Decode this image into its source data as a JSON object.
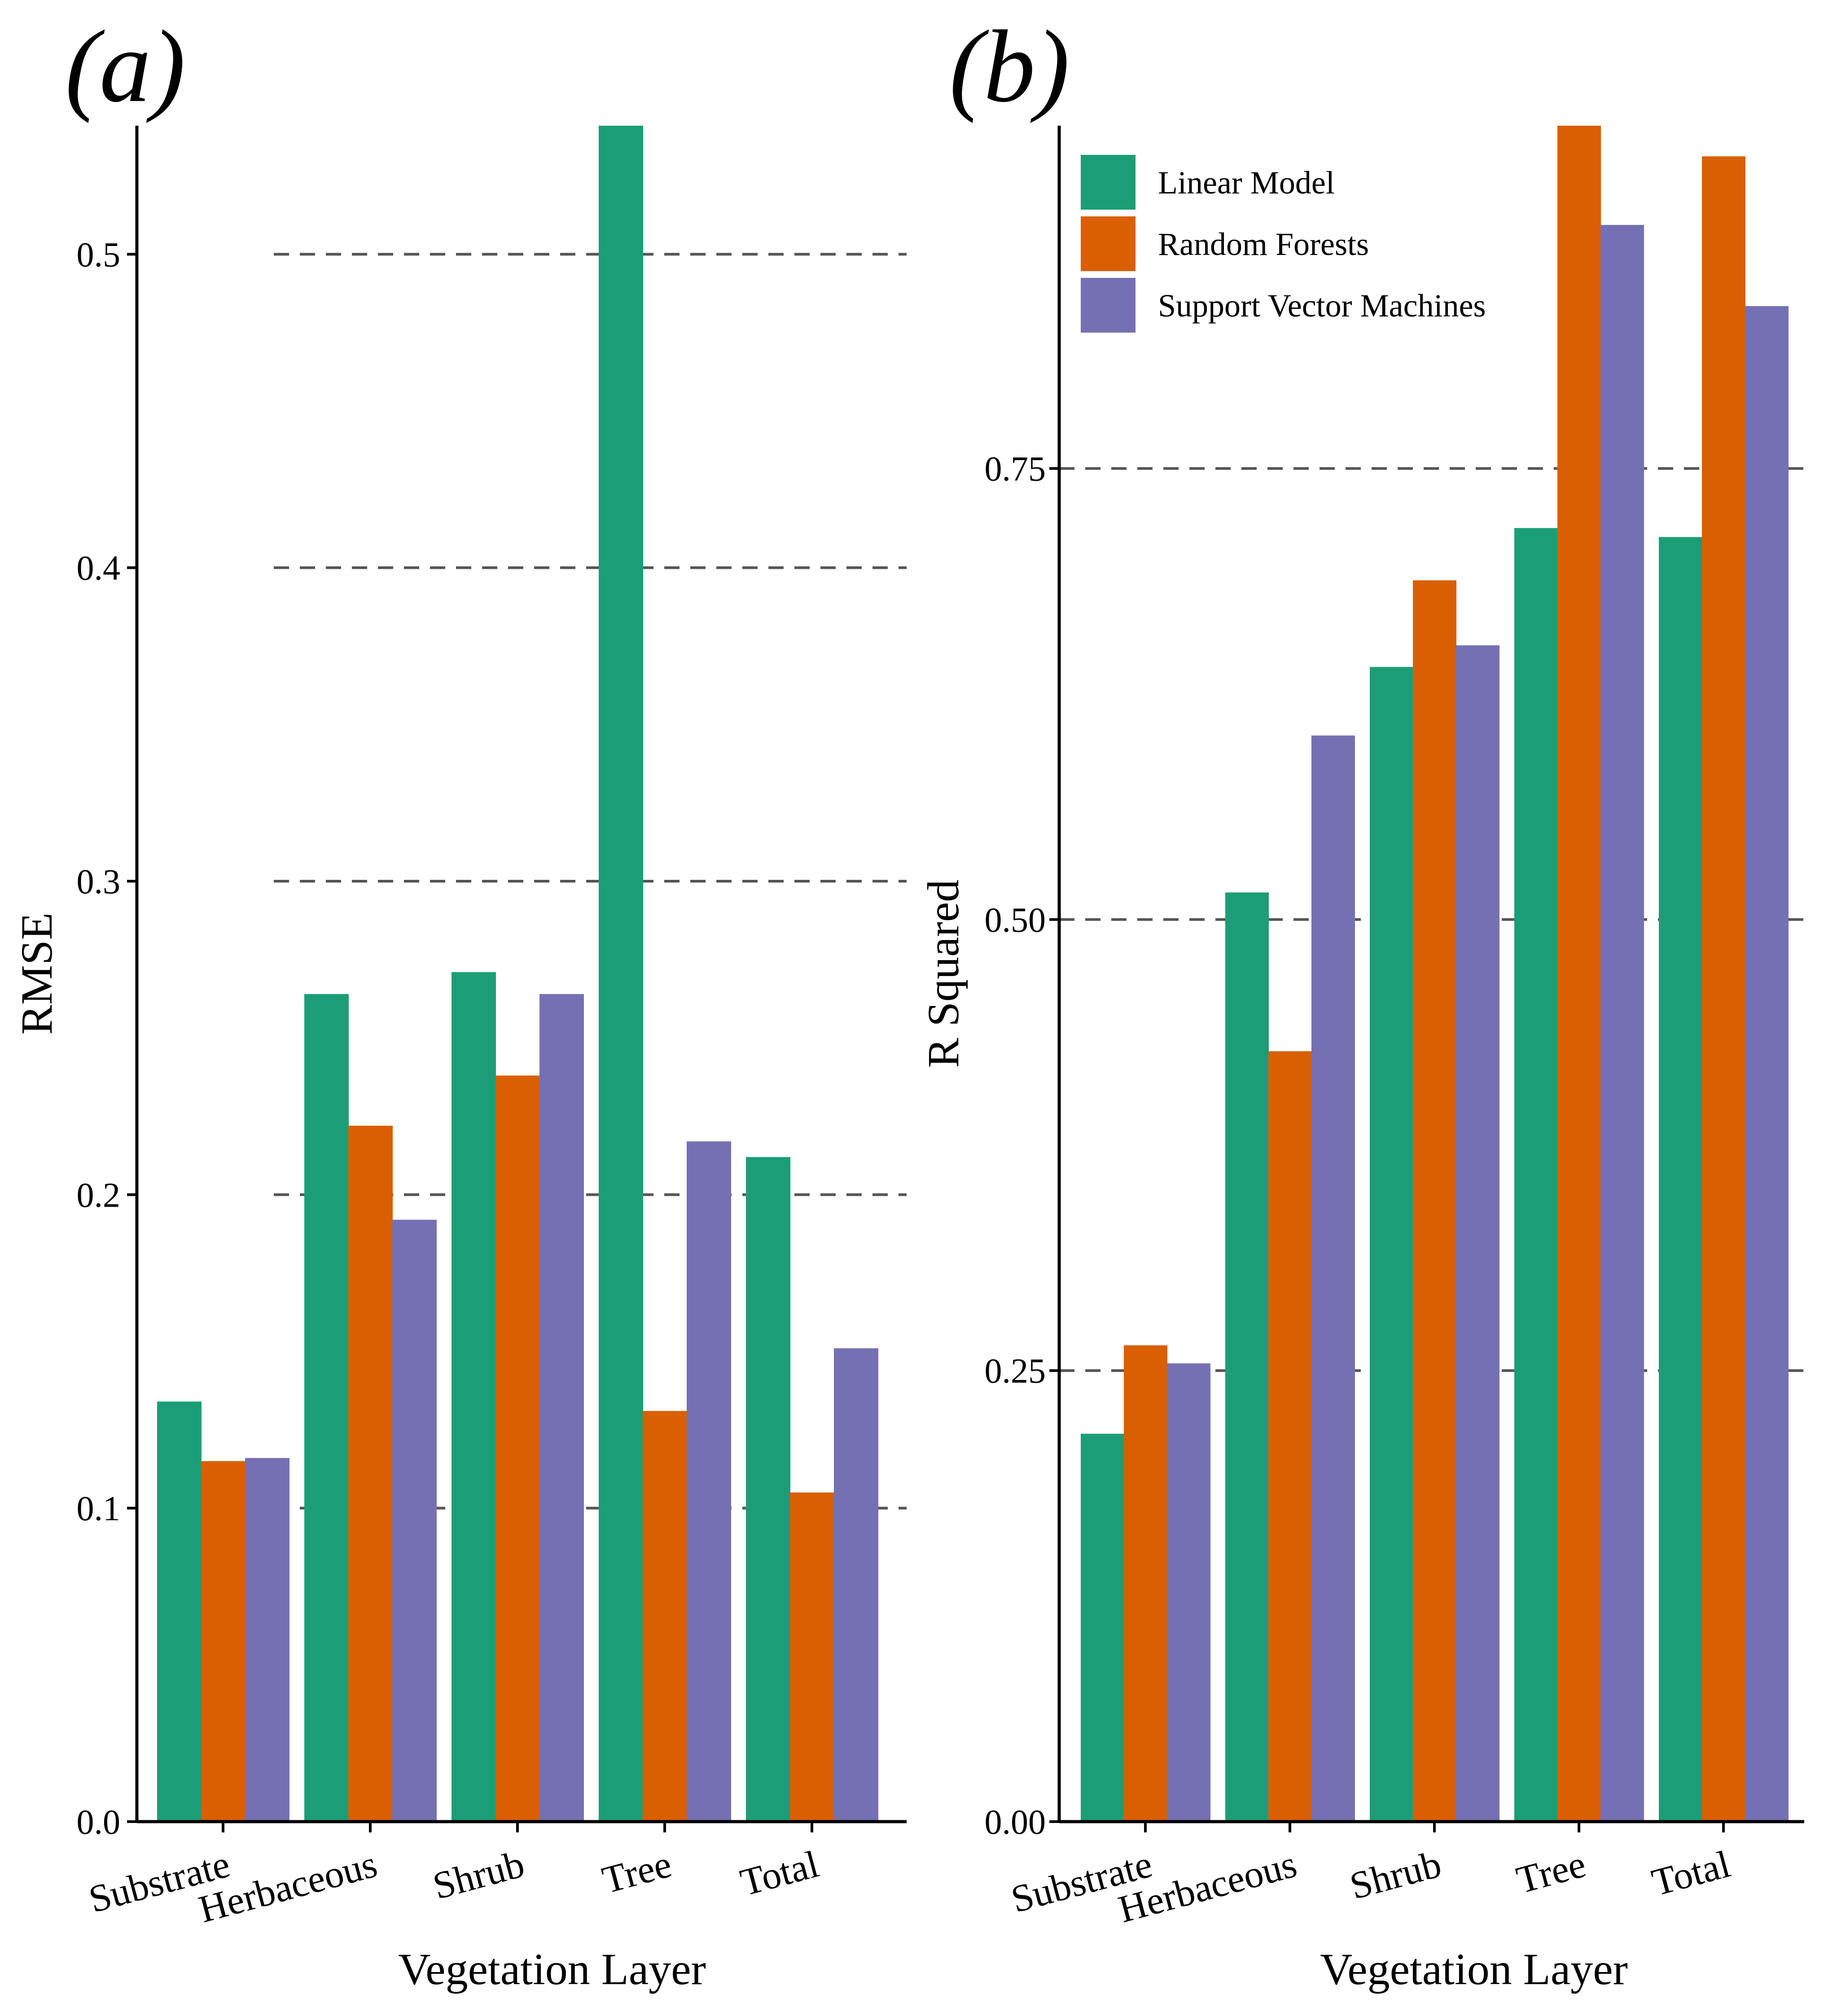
{
  "chart_data": [
    {
      "type": "bar",
      "panel_label": "(a)",
      "title": "",
      "xlabel": "Vegetation Layer",
      "ylabel": "RMSE",
      "ylim": [
        0,
        0.541
      ],
      "yticks": [
        0.0,
        0.1,
        0.2,
        0.3,
        0.4,
        0.5
      ],
      "ytick_labels": [
        "0.0",
        "0.1",
        "0.2",
        "0.3",
        "0.4",
        "0.5"
      ],
      "grid": "horizontal dashed",
      "categories": [
        "Substrate",
        "Herbaceous",
        "Shrub",
        "Tree",
        "Total"
      ],
      "series": [
        {
          "name": "Linear Model",
          "color": "#1b9e77",
          "values": [
            0.134,
            0.264,
            0.271,
            0.541,
            0.212
          ]
        },
        {
          "name": "Random Forests",
          "color": "#d95f02",
          "values": [
            0.115,
            0.222,
            0.238,
            0.131,
            0.105
          ]
        },
        {
          "name": "Support Vector Machines",
          "color": "#7570b3",
          "values": [
            0.116,
            0.192,
            0.264,
            0.217,
            0.151
          ]
        }
      ]
    },
    {
      "type": "bar",
      "panel_label": "(b)",
      "title": "",
      "xlabel": "Vegetation Layer",
      "ylabel": "R Squared",
      "ylim": [
        0,
        0.94
      ],
      "yticks": [
        0.0,
        0.25,
        0.5,
        0.75
      ],
      "ytick_labels": [
        "0.00",
        "0.25",
        "0.50",
        "0.75"
      ],
      "grid": "horizontal dashed",
      "legend_position": "top-left",
      "categories": [
        "Substrate",
        "Herbaceous",
        "Shrub",
        "Tree",
        "Total"
      ],
      "series": [
        {
          "name": "Linear Model",
          "color": "#1b9e77",
          "values": [
            0.215,
            0.515,
            0.64,
            0.717,
            0.712
          ]
        },
        {
          "name": "Random Forests",
          "color": "#d95f02",
          "values": [
            0.264,
            0.427,
            0.688,
            0.94,
            0.923
          ]
        },
        {
          "name": "Support Vector Machines",
          "color": "#7570b3",
          "values": [
            0.254,
            0.602,
            0.652,
            0.885,
            0.84
          ]
        }
      ]
    }
  ]
}
